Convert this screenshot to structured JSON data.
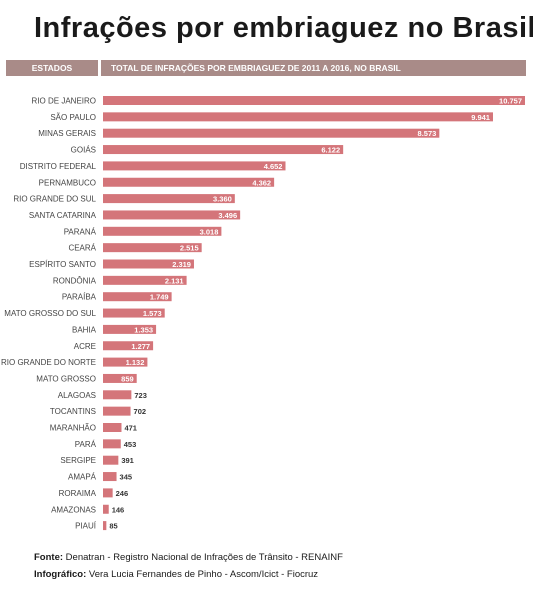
{
  "chart_data": {
    "type": "bar",
    "orientation": "horizontal",
    "title": "Infrações por embriaguez no Brasil",
    "category_header": "ESTADOS",
    "value_header": "TOTAL DE INFRAÇÕES POR EMBRIAGUEZ DE 2011 A 2016, NO BRASIL",
    "categories": [
      "RIO DE JANEIRO",
      "SÃO PAULO",
      "MINAS GERAIS",
      "GOIÁS",
      "DISTRITO FEDERAL",
      "PERNAMBUCO",
      "RIO GRANDE DO SUL",
      "SANTA CATARINA",
      "PARANÁ",
      "CEARÁ",
      "ESPÍRITO SANTO",
      "RONDÔNIA",
      "PARAÍBA",
      "MATO GROSSO DO SUL",
      "BAHIA",
      "ACRE",
      "RIO GRANDE DO NORTE",
      "MATO GROSSO",
      "ALAGOAS",
      "TOCANTINS",
      "MARANHÃO",
      "PARÁ",
      "SERGIPE",
      "AMAPÁ",
      "RORAIMA",
      "AMAZONAS",
      "PIAUÍ"
    ],
    "values": [
      10757,
      9941,
      8573,
      6122,
      4652,
      4362,
      3360,
      3496,
      3018,
      2515,
      2319,
      2131,
      1749,
      1573,
      1353,
      1277,
      1132,
      859,
      723,
      702,
      471,
      453,
      391,
      345,
      246,
      146,
      85
    ],
    "value_labels": [
      "10.757",
      "9.941",
      "8.573",
      "6.122",
      "4.652",
      "4.362",
      "3.360",
      "3.496",
      "3.018",
      "2.515",
      "2.319",
      "2.131",
      "1.749",
      "1.573",
      "1.353",
      "1.277",
      "1.132",
      "859",
      "723",
      "702",
      "471",
      "453",
      "391",
      "345",
      "246",
      "146",
      "85"
    ],
    "xlim": [
      0,
      10757
    ],
    "grid": false,
    "legend": "none",
    "bar_color": "#d4757a",
    "label_color_inside": "#ffffff",
    "label_color_outside": "#333333",
    "header_color": "#a98b88"
  },
  "footer": {
    "source_label": "Fonte:",
    "source_text": " Denatran - Registro Nacional de Infrações de Trânsito - RENAINF",
    "credit_label": "Infográfico:",
    "credit_text": " Vera Lucia Fernandes de Pinho - Ascom/Icict - Fiocruz"
  }
}
